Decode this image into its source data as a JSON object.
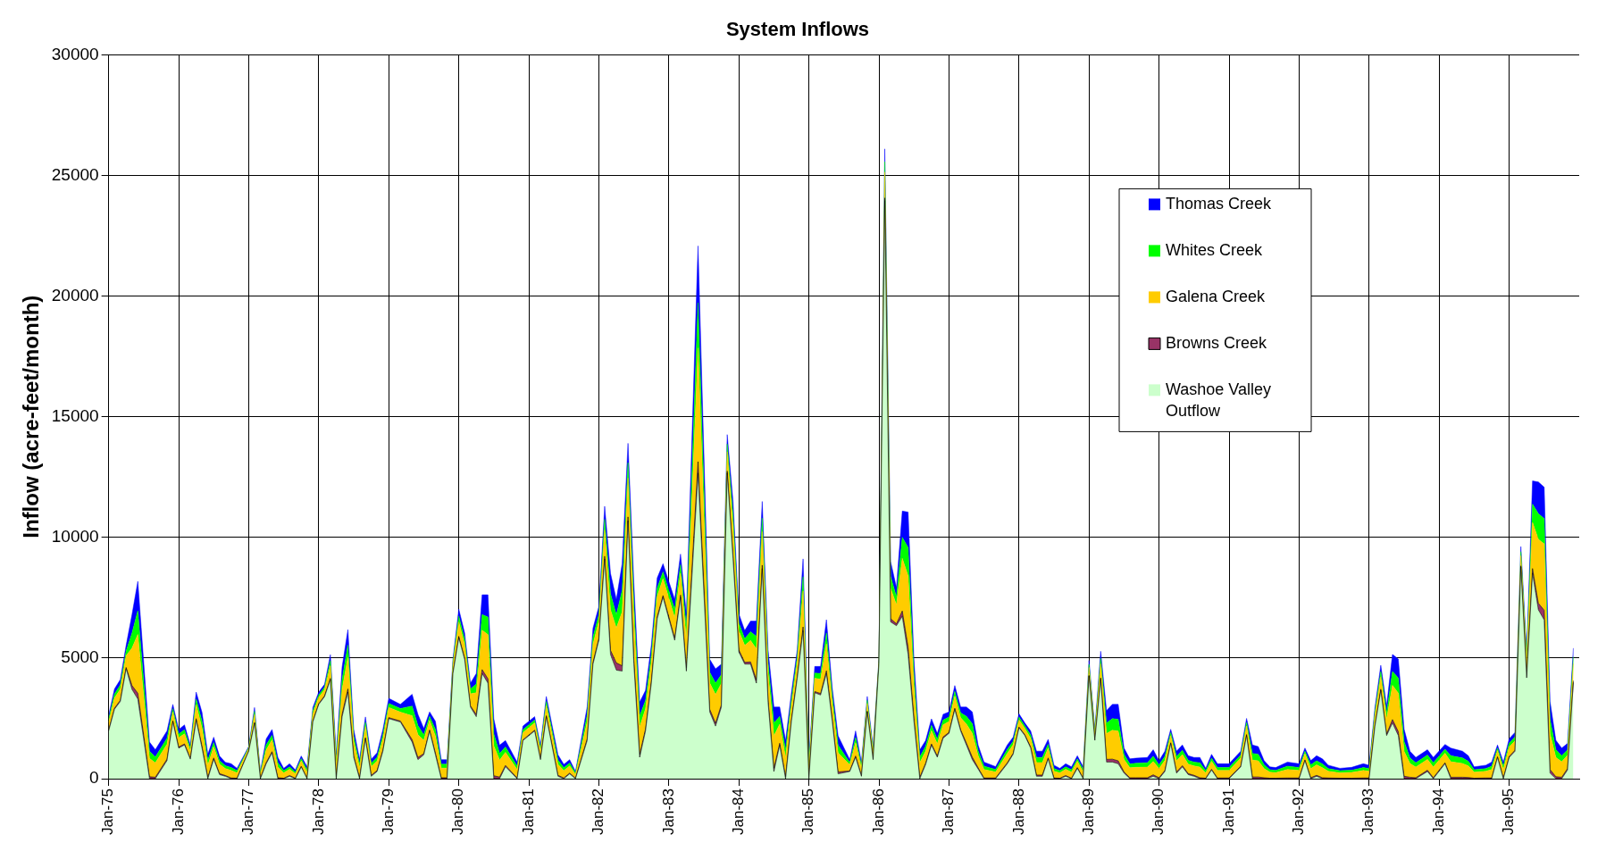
{
  "chart_data": {
    "type": "area",
    "title": "System Inflows",
    "ylabel": "Inflow (acre-feet/month)",
    "stacked": true,
    "grid": true,
    "legend": "top right",
    "ylim": [
      0,
      30000
    ],
    "yticks": [
      0,
      5000,
      10000,
      15000,
      20000,
      25000,
      30000
    ],
    "xlim": [
      "1975-01",
      "1995-12"
    ],
    "xticks": [
      {
        "value": "1975-01",
        "label": "Jan-75"
      },
      {
        "value": "1976-01",
        "label": "Jan-76"
      },
      {
        "value": "1977-01",
        "label": "Jan-77"
      },
      {
        "value": "1978-01",
        "label": "Jan-78"
      },
      {
        "value": "1979-01",
        "label": "Jan-79"
      },
      {
        "value": "1980-01",
        "label": "Jan-80"
      },
      {
        "value": "1981-01",
        "label": "Jan-81"
      },
      {
        "value": "1982-01",
        "label": "Jan-82"
      },
      {
        "value": "1983-01",
        "label": "Jan-83"
      },
      {
        "value": "1984-01",
        "label": "Jan-84"
      },
      {
        "value": "1985-01",
        "label": "Jan-85"
      },
      {
        "value": "1986-01",
        "label": "Jan-86"
      },
      {
        "value": "1987-01",
        "label": "Jan-87"
      },
      {
        "value": "1988-01",
        "label": "Jan-88"
      },
      {
        "value": "1989-01",
        "label": "Jan-89"
      },
      {
        "value": "1990-01",
        "label": "Jan-90"
      },
      {
        "value": "1991-01",
        "label": "Jan-91"
      },
      {
        "value": "1992-01",
        "label": "Jan-92"
      },
      {
        "value": "1993-01",
        "label": "Jan-93"
      },
      {
        "value": "1994-01",
        "label": "Jan-94"
      },
      {
        "value": "1995-01",
        "label": "Jan-95"
      }
    ],
    "x": [
      "1975-01",
      "1975-02",
      "1975-03",
      "1975-04",
      "1975-05",
      "1975-06",
      "1975-08",
      "1975-09",
      "1975-11",
      "1975-12",
      "1976-01",
      "1976-02",
      "1976-03",
      "1976-04",
      "1976-05",
      "1976-06",
      "1976-07",
      "1976-08",
      "1976-09",
      "1976-10",
      "1976-11",
      "1977-01",
      "1977-02",
      "1977-03",
      "1977-04",
      "1977-05",
      "1977-06",
      "1977-07",
      "1977-08",
      "1977-09",
      "1977-10",
      "1977-11",
      "1977-12",
      "1978-01",
      "1978-02",
      "1978-03",
      "1978-04",
      "1978-05",
      "1978-06",
      "1978-07",
      "1978-08",
      "1978-09",
      "1978-10",
      "1978-11",
      "1978-12",
      "1979-01",
      "1979-03",
      "1979-05",
      "1979-06",
      "1979-07",
      "1979-08",
      "1979-09",
      "1979-10",
      "1979-11",
      "1979-12",
      "1980-01",
      "1980-02",
      "1980-03",
      "1980-04",
      "1980-05",
      "1980-06",
      "1980-07",
      "1980-08",
      "1980-09",
      "1980-11",
      "1980-12",
      "1981-02",
      "1981-03",
      "1981-04",
      "1981-06",
      "1981-07",
      "1981-08",
      "1981-09",
      "1981-11",
      "1981-12",
      "1982-01",
      "1982-02",
      "1982-03",
      "1982-04",
      "1982-05",
      "1982-06",
      "1982-07",
      "1982-08",
      "1982-09",
      "1982-10",
      "1982-11",
      "1982-12",
      "1983-02",
      "1983-03",
      "1983-04",
      "1983-06",
      "1983-08",
      "1983-09",
      "1983-10",
      "1983-11",
      "1983-12",
      "1984-01",
      "1984-02",
      "1984-03",
      "1984-04",
      "1984-05",
      "1984-06",
      "1984-07",
      "1984-08",
      "1984-09",
      "1984-10",
      "1984-11",
      "1984-12",
      "1985-01",
      "1985-02",
      "1985-03",
      "1985-04",
      "1985-05",
      "1985-06",
      "1985-08",
      "1985-09",
      "1985-10",
      "1985-11",
      "1985-12",
      "1986-01",
      "1986-02",
      "1986-03",
      "1986-04",
      "1986-05",
      "1986-06",
      "1986-07",
      "1986-08",
      "1986-09",
      "1986-10",
      "1986-11",
      "1986-12",
      "1987-01",
      "1987-02",
      "1987-03",
      "1987-04",
      "1987-05",
      "1987-06",
      "1987-07",
      "1987-09",
      "1987-11",
      "1987-12",
      "1988-01",
      "1988-02",
      "1988-03",
      "1988-04",
      "1988-05",
      "1988-06",
      "1988-07",
      "1988-08",
      "1988-09",
      "1988-10",
      "1988-11",
      "1988-12",
      "1989-01",
      "1989-02",
      "1989-03",
      "1989-04",
      "1989-05",
      "1989-06",
      "1989-07",
      "1989-08",
      "1989-09",
      "1989-11",
      "1989-12",
      "1990-01",
      "1990-02",
      "1990-03",
      "1990-04",
      "1990-05",
      "1990-06",
      "1990-07",
      "1990-08",
      "1990-09",
      "1990-10",
      "1990-11",
      "1991-01",
      "1991-03",
      "1991-04",
      "1991-05",
      "1991-06",
      "1991-07",
      "1991-08",
      "1991-09",
      "1991-11",
      "1992-01",
      "1992-02",
      "1992-03",
      "1992-04",
      "1992-05",
      "1992-06",
      "1992-08",
      "1992-10",
      "1992-12",
      "1993-01",
      "1993-02",
      "1993-03",
      "1993-04",
      "1993-05",
      "1993-06",
      "1993-07",
      "1993-08",
      "1993-09",
      "1993-11",
      "1993-12",
      "1994-02",
      "1994-03",
      "1994-05",
      "1994-06",
      "1994-07",
      "1994-09",
      "1994-10",
      "1994-11",
      "1994-12",
      "1995-01",
      "1995-02",
      "1995-03",
      "1995-04",
      "1995-05",
      "1995-06",
      "1995-07",
      "1995-08",
      "1995-09",
      "1995-10",
      "1995-11",
      "1995-12"
    ],
    "series": [
      {
        "name": "Washoe Valley Outflow",
        "color": "#ccffcc",
        "values": [
          1980,
          2880,
          3200,
          4560,
          3700,
          3300,
          0,
          0,
          750,
          2360,
          1270,
          1400,
          810,
          2430,
          1270,
          0,
          810,
          170,
          100,
          0,
          0,
          1140,
          2300,
          0,
          620,
          1070,
          0,
          0,
          100,
          0,
          490,
          0,
          2360,
          3080,
          3400,
          4110,
          0,
          2560,
          3590,
          880,
          0,
          1650,
          100,
          300,
          1140,
          2490,
          2350,
          1520,
          790,
          990,
          1980,
          990,
          0,
          0,
          4360,
          5840,
          4950,
          2970,
          2570,
          4360,
          3960,
          0,
          0,
          500,
          0,
          1580,
          1980,
          790,
          2570,
          100,
          0,
          200,
          0,
          1580,
          4750,
          5740,
          9110,
          5150,
          4500,
          4460,
          10690,
          4750,
          890,
          1980,
          3960,
          6630,
          7520,
          5740,
          7520,
          4460,
          12670,
          2770,
          2180,
          2970,
          12670,
          9110,
          5250,
          4750,
          4750,
          3960,
          8710,
          3170,
          300,
          1390,
          0,
          2380,
          4160,
          6140,
          0,
          3560,
          3470,
          4360,
          2380,
          200,
          300,
          890,
          100,
          2770,
          790,
          4750,
          23960,
          6500,
          6340,
          6730,
          5150,
          2380,
          0,
          590,
          1390,
          890,
          1680,
          1880,
          2870,
          1980,
          1390,
          790,
          400,
          0,
          0,
          620,
          1010,
          2110,
          1790,
          1270,
          100,
          100,
          820,
          0,
          0,
          100,
          0,
          430,
          0,
          4250,
          1590,
          4120,
          690,
          690,
          620,
          230,
          0,
          0,
          0,
          100,
          0,
          300,
          1460,
          230,
          490,
          170,
          100,
          0,
          0,
          360,
          0,
          0,
          490,
          1790,
          0,
          0,
          0,
          0,
          0,
          0,
          0,
          750,
          0,
          100,
          0,
          0,
          0,
          0,
          0,
          0,
          2180,
          3660,
          1790,
          2310,
          1790,
          0,
          0,
          0,
          300,
          0,
          620,
          0,
          0,
          0,
          0,
          0,
          0,
          880,
          0,
          880,
          1140,
          8780,
          4180,
          8520,
          7000,
          6580,
          230,
          0,
          0,
          360,
          3990
        ]
      },
      {
        "name": "Browns Creek",
        "color": "#993366",
        "values": [
          30,
          40,
          50,
          50,
          160,
          240,
          80,
          60,
          60,
          40,
          40,
          40,
          30,
          60,
          70,
          50,
          50,
          40,
          30,
          30,
          20,
          10,
          30,
          20,
          50,
          50,
          40,
          20,
          30,
          20,
          20,
          20,
          30,
          30,
          30,
          50,
          50,
          100,
          130,
          60,
          40,
          50,
          40,
          40,
          50,
          40,
          40,
          100,
          90,
          50,
          40,
          70,
          40,
          40,
          30,
          60,
          50,
          50,
          90,
          160,
          180,
          120,
          70,
          50,
          30,
          30,
          30,
          30,
          40,
          40,
          30,
          30,
          20,
          70,
          70,
          70,
          110,
          170,
          300,
          220,
          160,
          170,
          110,
          80,
          80,
          80,
          70,
          80,
          90,
          120,
          470,
          110,
          120,
          90,
          80,
          120,
          80,
          70,
          90,
          130,
          140,
          110,
          130,
          80,
          80,
          60,
          60,
          150,
          40,
          50,
          60,
          110,
          70,
          80,
          20,
          50,
          30,
          30,
          30,
          10,
          110,
          130,
          80,
          220,
          300,
          130,
          60,
          50,
          50,
          50,
          50,
          40,
          50,
          50,
          80,
          100,
          50,
          30,
          30,
          40,
          40,
          30,
          30,
          40,
          50,
          50,
          40,
          30,
          20,
          30,
          20,
          30,
          20,
          30,
          20,
          60,
          110,
          120,
          120,
          50,
          40,
          40,
          40,
          60,
          40,
          40,
          30,
          50,
          50,
          40,
          40,
          40,
          20,
          30,
          30,
          30,
          30,
          40,
          70,
          70,
          40,
          20,
          20,
          30,
          30,
          30,
          40,
          40,
          40,
          30,
          20,
          20,
          30,
          30,
          40,
          50,
          60,
          140,
          160,
          100,
          60,
          40,
          50,
          40,
          40,
          60,
          60,
          50,
          20,
          30,
          30,
          30,
          30,
          40,
          40,
          40,
          60,
          190,
          270,
          400,
          150,
          80,
          60,
          60,
          70
        ]
      },
      {
        "name": "Galena Creek",
        "color": "#ffcc00",
        "values": [
          320,
          420,
          460,
          490,
          1550,
          2440,
          760,
          600,
          620,
          360,
          390,
          420,
          300,
          580,
          740,
          510,
          460,
          390,
          290,
          310,
          220,
          100,
          330,
          150,
          520,
          490,
          440,
          220,
          260,
          180,
          230,
          250,
          300,
          260,
          260,
          520,
          510,
          1030,
          1300,
          580,
          410,
          460,
          360,
          390,
          450,
          420,
          370,
          990,
          940,
          550,
          400,
          700,
          400,
          400,
          300,
          600,
          550,
          500,
          900,
          1630,
          1830,
          1240,
          700,
          540,
          350,
          300,
          300,
          300,
          420,
          450,
          300,
          300,
          150,
          700,
          750,
          700,
          1090,
          1680,
          1450,
          2230,
          1610,
          1690,
          1140,
          840,
          790,
          850,
          700,
          850,
          900,
          1190,
          4710,
          1090,
          1190,
          890,
          800,
          1190,
          790,
          700,
          890,
          1290,
          1390,
          1090,
          1340,
          790,
          790,
          590,
          600,
          1490,
          400,
          550,
          590,
          1120,
          690,
          790,
          250,
          550,
          300,
          320,
          250,
          100,
          1070,
          1250,
          790,
          2180,
          2950,
          1290,
          600,
          500,
          550,
          500,
          500,
          450,
          500,
          500,
          790,
          990,
          500,
          350,
          250,
          390,
          360,
          290,
          260,
          360,
          520,
          520,
          410,
          280,
          220,
          260,
          250,
          260,
          250,
          330,
          230,
          580,
          1070,
          1200,
          1230,
          520,
          410,
          430,
          440,
          550,
          380,
          420,
          300,
          460,
          460,
          390,
          390,
          440,
          220,
          330,
          310,
          310,
          330,
          360,
          700,
          670,
          380,
          250,
          230,
          350,
          310,
          260,
          380,
          430,
          410,
          280,
          220,
          240,
          310,
          280,
          390,
          520,
          620,
          1420,
          1590,
          1030,
          570,
          440,
          450,
          440,
          400,
          640,
          570,
          480,
          250,
          280,
          350,
          260,
          350,
          390,
          390,
          420,
          550,
          1910,
          2650,
          2750,
          1490,
          800,
          640,
          550,
          710
        ]
      },
      {
        "name": "Whites Creek",
        "color": "#00ff00",
        "values": [
          130,
          170,
          180,
          190,
          620,
          980,
          300,
          240,
          250,
          140,
          150,
          170,
          120,
          230,
          300,
          200,
          180,
          150,
          120,
          120,
          90,
          40,
          130,
          60,
          210,
          190,
          180,
          90,
          100,
          70,
          90,
          100,
          120,
          100,
          100,
          210,
          200,
          410,
          520,
          230,
          160,
          180,
          140,
          150,
          180,
          170,
          150,
          400,
          380,
          220,
          160,
          280,
          160,
          160,
          120,
          240,
          220,
          200,
          360,
          650,
          730,
          500,
          280,
          220,
          140,
          120,
          120,
          120,
          170,
          180,
          120,
          120,
          60,
          280,
          300,
          280,
          440,
          670,
          540,
          890,
          640,
          670,
          460,
          340,
          320,
          340,
          280,
          340,
          360,
          470,
          1880,
          440,
          470,
          360,
          320,
          480,
          320,
          280,
          360,
          510,
          560,
          440,
          530,
          320,
          320,
          240,
          240,
          590,
          160,
          220,
          240,
          450,
          280,
          320,
          100,
          220,
          120,
          130,
          100,
          40,
          430,
          500,
          320,
          870,
          1180,
          510,
          240,
          200,
          220,
          200,
          200,
          180,
          200,
          200,
          320,
          400,
          200,
          140,
          100,
          160,
          140,
          120,
          100,
          140,
          210,
          210,
          160,
          110,
          90,
          100,
          100,
          100,
          100,
          130,
          90,
          230,
          430,
          480,
          490,
          210,
          160,
          170,
          180,
          220,
          150,
          170,
          120,
          180,
          180,
          160,
          160,
          180,
          90,
          130,
          120,
          120,
          130,
          140,
          280,
          270,
          150,
          100,
          90,
          140,
          120,
          100,
          150,
          170,
          160,
          110,
          90,
          90,
          120,
          110,
          150,
          210,
          250,
          570,
          630,
          410,
          230,
          180,
          180,
          180,
          160,
          250,
          230,
          190,
          100,
          110,
          140,
          100,
          140,
          160,
          160,
          170,
          220,
          760,
          1060,
          1050,
          600,
          320,
          250,
          220,
          280
        ]
      },
      {
        "name": "Thomas Creek",
        "color": "#0000ff",
        "values": [
          160,
          210,
          220,
          240,
          770,
          1220,
          380,
          300,
          300,
          180,
          190,
          200,
          140,
          290,
          370,
          250,
          220,
          190,
          140,
          160,
          100,
          40,
          160,
          70,
          250,
          240,
          220,
          100,
          130,
          90,
          110,
          120,
          140,
          120,
          120,
          250,
          250,
          520,
          640,
          290,
          200,
          220,
          170,
          190,
          220,
          210,
          170,
          490,
          470,
          270,
          190,
          340,
          190,
          190,
          140,
          290,
          270,
          240,
          440,
          820,
          920,
          620,
          340,
          270,
          170,
          150,
          140,
          150,
          210,
          220,
          140,
          140,
          70,
          340,
          370,
          340,
          540,
          840,
          640,
          1110,
          800,
          840,
          570,
          420,
          390,
          420,
          340,
          420,
          440,
          590,
          2350,
          540,
          590,
          440,
          390,
          590,
          390,
          340,
          440,
          640,
          690,
          540,
          670,
          390,
          390,
          290,
          290,
          740,
          190,
          270,
          290,
          550,
          340,
          390,
          120,
          270,
          140,
          160,
          120,
          50,
          530,
          620,
          390,
          1090,
          1470,
          640,
          290,
          240,
          270,
          240,
          240,
          220,
          240,
          240,
          390,
          490,
          240,
          170,
          120,
          190,
          170,
          140,
          130,
          170,
          260,
          260,
          200,
          140,
          100,
          130,
          120,
          130,
          120,
          160,
          120,
          290,
          520,
          590,
          620,
          260,
          210,
          210,
          220,
          270,
          180,
          210,
          140,
          220,
          220,
          190,
          190,
          220,
          100,
          160,
          160,
          160,
          160,
          170,
          350,
          320,
          180,
          120,
          120,
          170,
          160,
          130,
          180,
          210,
          210,
          140,
          100,
          120,
          160,
          140,
          190,
          260,
          300,
          710,
          790,
          510,
          280,
          220,
          220,
          220,
          200,
          320,
          280,
          230,
          120,
          140,
          170,
          130,
          170,
          190,
          190,
          210,
          270,
          960,
          1320,
          1300,
          740,
          390,
          320,
          270,
          360
        ]
      }
    ]
  }
}
